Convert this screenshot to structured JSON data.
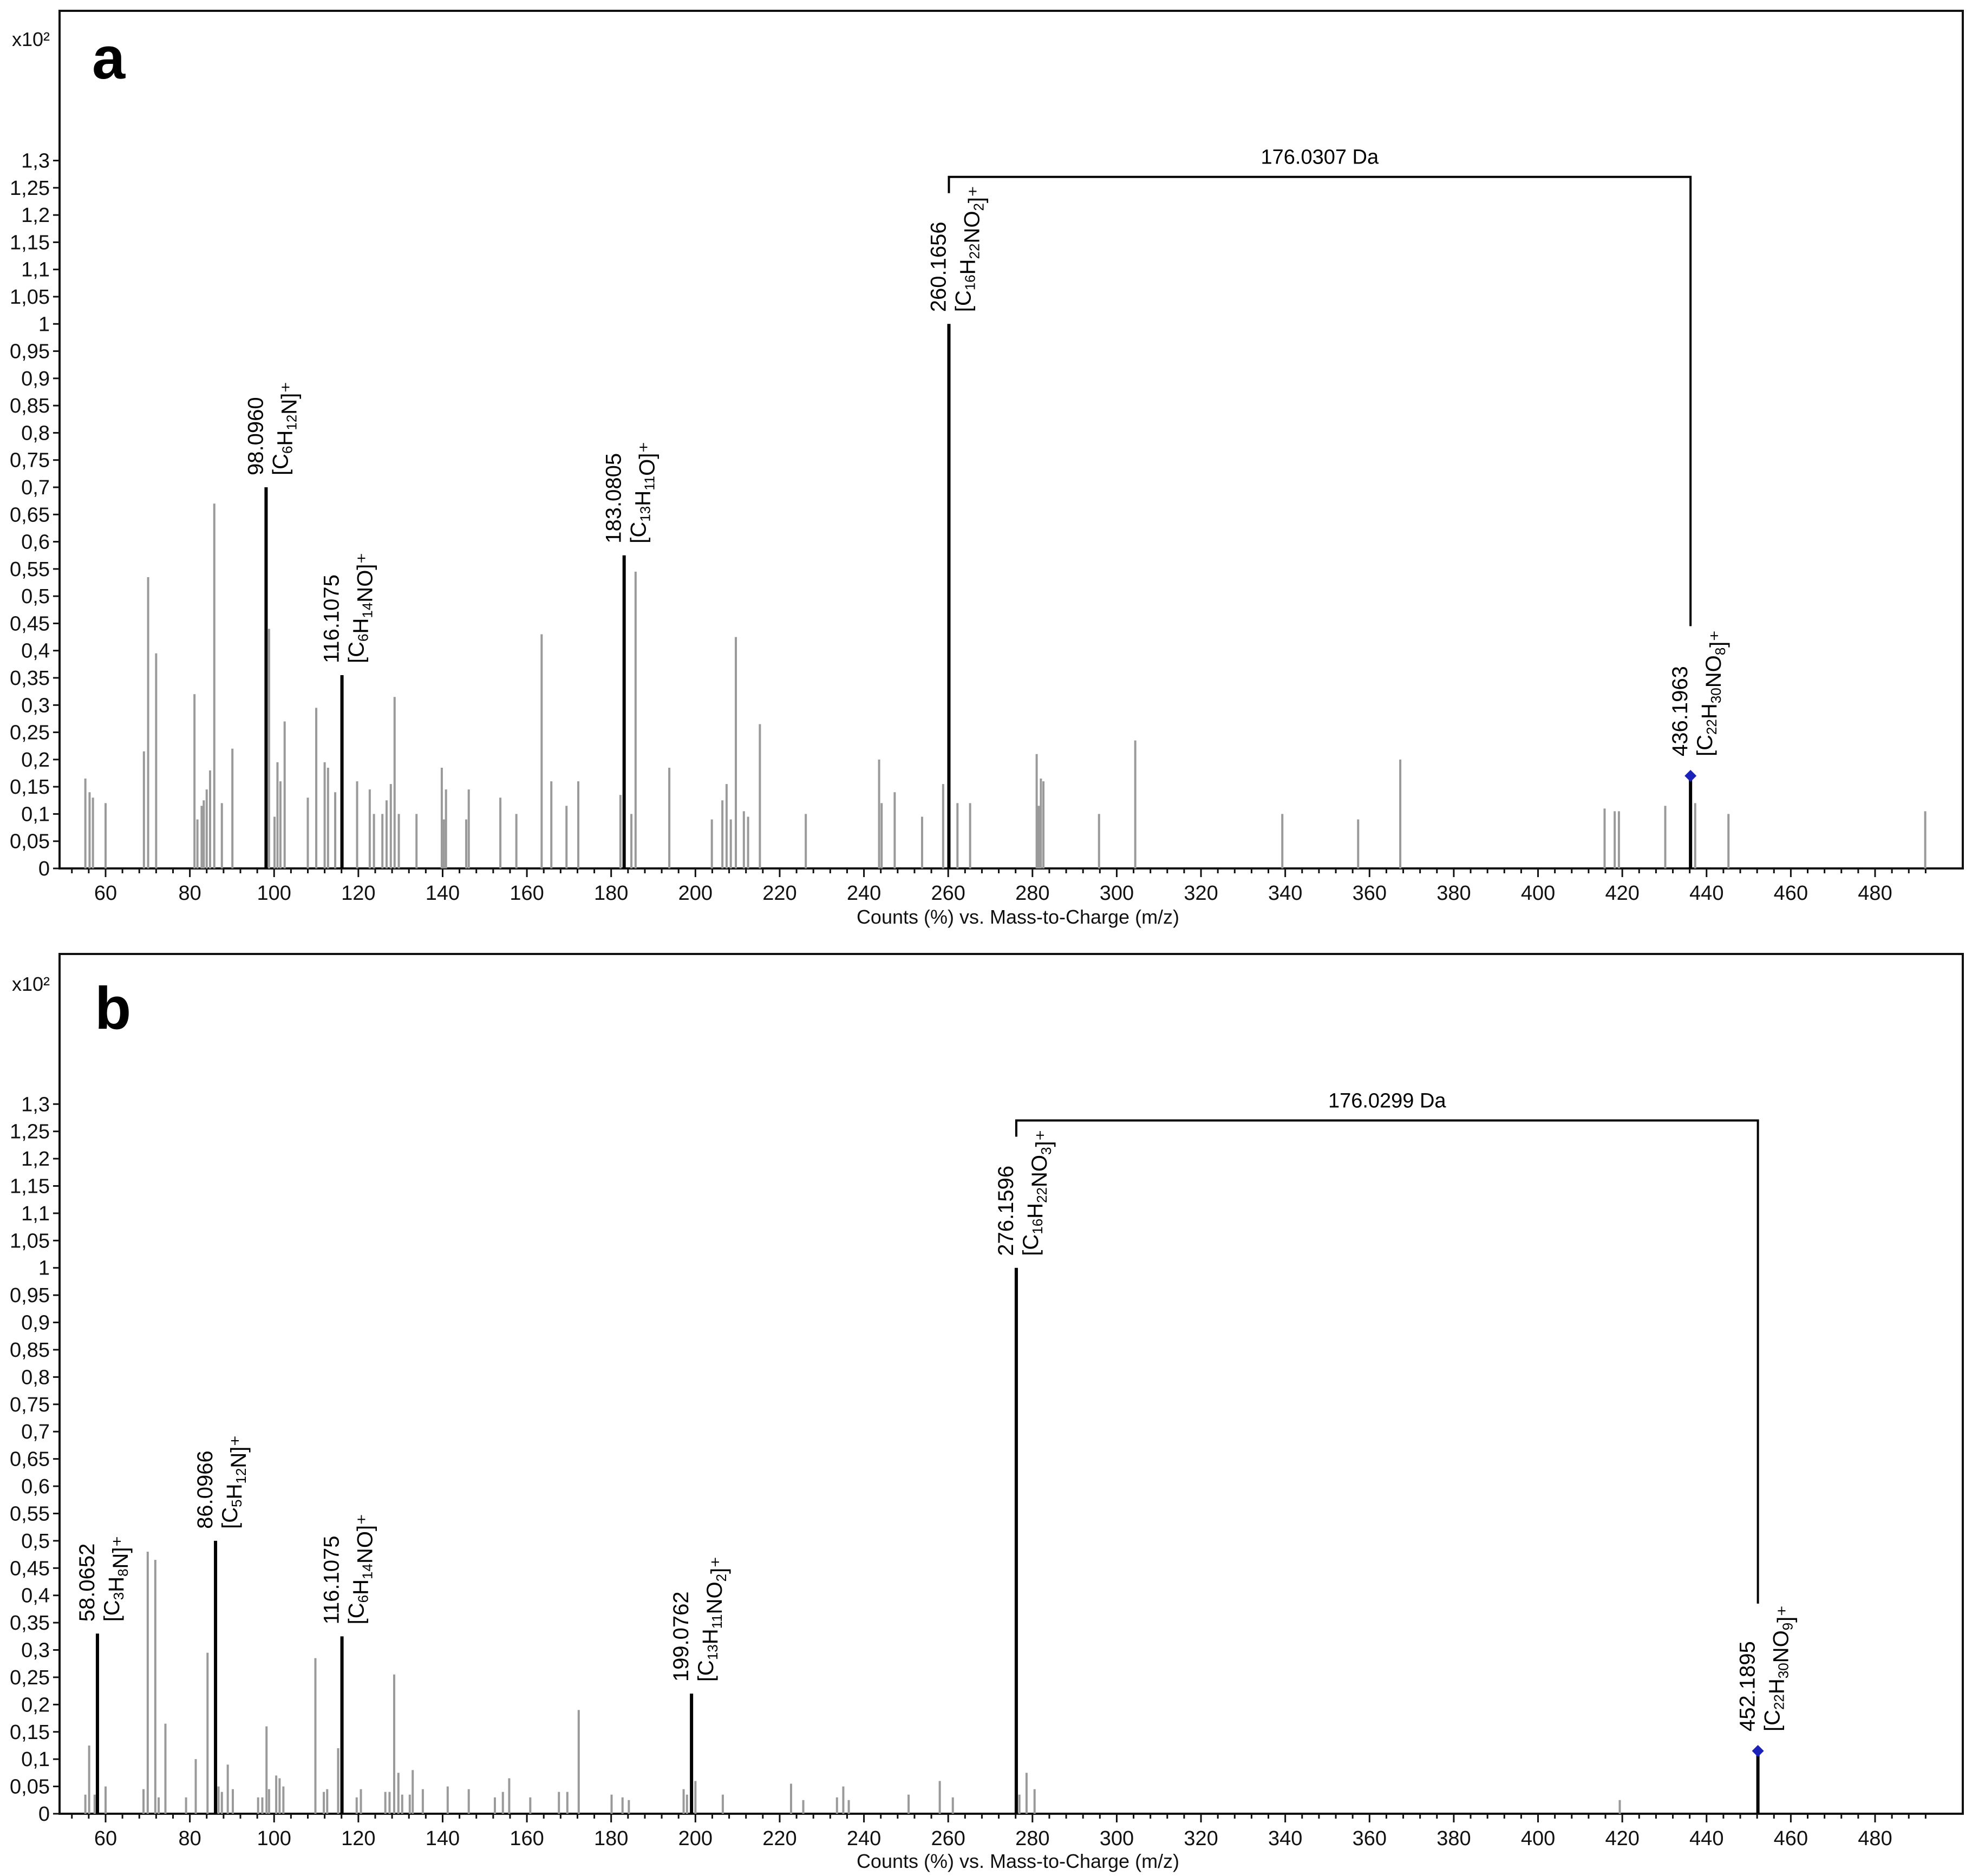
{
  "chart_data": [
    {
      "type": "bar",
      "panel_label": "a",
      "y_scale_label": "x10²",
      "xlabel": "Counts (%) vs. Mass-to-Charge (m/z)",
      "ylabel": "",
      "xlim": [
        50,
        495
      ],
      "ylim": [
        0,
        1.35
      ],
      "x_ticks": [
        60,
        80,
        100,
        120,
        140,
        160,
        180,
        200,
        220,
        240,
        260,
        280,
        300,
        320,
        340,
        360,
        380,
        400,
        420,
        440,
        460,
        480
      ],
      "y_ticks": [
        "0",
        "0,05",
        "0,1",
        "0,15",
        "0,2",
        "0,25",
        "0,3",
        "0,35",
        "0,4",
        "0,45",
        "0,5",
        "0,55",
        "0,6",
        "0,65",
        "0,7",
        "0,75",
        "0,8",
        "0,85",
        "0,9",
        "0,95",
        "1",
        "1,05",
        "1,1",
        "1,15",
        "1,2",
        "1,25",
        "1,3"
      ],
      "peaks": [
        {
          "x": 55.2,
          "y": 0.165
        },
        {
          "x": 56.2,
          "y": 0.14
        },
        {
          "x": 57.0,
          "y": 0.13
        },
        {
          "x": 60.0,
          "y": 0.12
        },
        {
          "x": 69.1,
          "y": 0.215
        },
        {
          "x": 70.1,
          "y": 0.535
        },
        {
          "x": 72.0,
          "y": 0.395
        },
        {
          "x": 81.1,
          "y": 0.32
        },
        {
          "x": 81.8,
          "y": 0.09
        },
        {
          "x": 82.8,
          "y": 0.115
        },
        {
          "x": 83.3,
          "y": 0.125
        },
        {
          "x": 84.0,
          "y": 0.145
        },
        {
          "x": 84.8,
          "y": 0.18
        },
        {
          "x": 85.8,
          "y": 0.67
        },
        {
          "x": 87.6,
          "y": 0.12
        },
        {
          "x": 90.1,
          "y": 0.22
        },
        {
          "x": 98.8,
          "y": 0.44
        },
        {
          "x": 100.1,
          "y": 0.095
        },
        {
          "x": 100.8,
          "y": 0.195
        },
        {
          "x": 101.5,
          "y": 0.16
        },
        {
          "x": 102.5,
          "y": 0.27
        },
        {
          "x": 108.0,
          "y": 0.13
        },
        {
          "x": 110.0,
          "y": 0.295
        },
        {
          "x": 112.0,
          "y": 0.195
        },
        {
          "x": 112.8,
          "y": 0.185
        },
        {
          "x": 114.5,
          "y": 0.14
        },
        {
          "x": 119.7,
          "y": 0.16
        },
        {
          "x": 122.7,
          "y": 0.145
        },
        {
          "x": 123.7,
          "y": 0.1
        },
        {
          "x": 125.7,
          "y": 0.1
        },
        {
          "x": 126.7,
          "y": 0.125
        },
        {
          "x": 127.7,
          "y": 0.155
        },
        {
          "x": 128.6,
          "y": 0.315
        },
        {
          "x": 129.6,
          "y": 0.1
        },
        {
          "x": 133.8,
          "y": 0.1
        },
        {
          "x": 139.8,
          "y": 0.185
        },
        {
          "x": 140.3,
          "y": 0.09
        },
        {
          "x": 140.8,
          "y": 0.145
        },
        {
          "x": 145.6,
          "y": 0.09
        },
        {
          "x": 146.2,
          "y": 0.145
        },
        {
          "x": 153.7,
          "y": 0.13
        },
        {
          "x": 157.5,
          "y": 0.1
        },
        {
          "x": 163.5,
          "y": 0.43
        },
        {
          "x": 165.8,
          "y": 0.16
        },
        {
          "x": 169.4,
          "y": 0.115
        },
        {
          "x": 172.2,
          "y": 0.16
        },
        {
          "x": 182.2,
          "y": 0.135
        },
        {
          "x": 184.8,
          "y": 0.1
        },
        {
          "x": 185.8,
          "y": 0.545
        },
        {
          "x": 193.8,
          "y": 0.185
        },
        {
          "x": 203.9,
          "y": 0.09
        },
        {
          "x": 206.4,
          "y": 0.125
        },
        {
          "x": 207.4,
          "y": 0.155
        },
        {
          "x": 208.4,
          "y": 0.09
        },
        {
          "x": 209.6,
          "y": 0.425
        },
        {
          "x": 211.5,
          "y": 0.105
        },
        {
          "x": 212.5,
          "y": 0.095
        },
        {
          "x": 215.3,
          "y": 0.265
        },
        {
          "x": 226.2,
          "y": 0.1
        },
        {
          "x": 243.6,
          "y": 0.2
        },
        {
          "x": 244.2,
          "y": 0.12
        },
        {
          "x": 247.3,
          "y": 0.14
        },
        {
          "x": 253.8,
          "y": 0.095
        },
        {
          "x": 258.8,
          "y": 0.155
        },
        {
          "x": 262.2,
          "y": 0.12
        },
        {
          "x": 265.2,
          "y": 0.12
        },
        {
          "x": 281.0,
          "y": 0.21
        },
        {
          "x": 281.5,
          "y": 0.115
        },
        {
          "x": 282.0,
          "y": 0.165
        },
        {
          "x": 282.6,
          "y": 0.16
        },
        {
          "x": 295.8,
          "y": 0.1
        },
        {
          "x": 304.4,
          "y": 0.235
        },
        {
          "x": 339.3,
          "y": 0.1
        },
        {
          "x": 357.3,
          "y": 0.09
        },
        {
          "x": 367.3,
          "y": 0.2
        },
        {
          "x": 415.8,
          "y": 0.11
        },
        {
          "x": 418.2,
          "y": 0.105
        },
        {
          "x": 419.2,
          "y": 0.105
        },
        {
          "x": 430.2,
          "y": 0.115
        },
        {
          "x": 437.3,
          "y": 0.12
        },
        {
          "x": 445.2,
          "y": 0.1
        },
        {
          "x": 491.9,
          "y": 0.105
        }
      ],
      "major_peaks": [
        {
          "x": 98.096,
          "y": 0.7,
          "mz": "98.0960",
          "formula": [
            [
              "[C",
              false
            ],
            [
              "6",
              true
            ],
            [
              "H",
              false
            ],
            [
              "12",
              true
            ],
            [
              "N]⁺",
              false
            ]
          ]
        },
        {
          "x": 116.1075,
          "y": 0.355,
          "mz": "116.1075",
          "formula": [
            [
              "[C",
              false
            ],
            [
              "6",
              true
            ],
            [
              "H",
              false
            ],
            [
              "14",
              true
            ],
            [
              "NO]⁺",
              false
            ]
          ]
        },
        {
          "x": 183.0805,
          "y": 0.575,
          "mz": "183.0805",
          "formula": [
            [
              "[C",
              false
            ],
            [
              "13",
              true
            ],
            [
              "H",
              false
            ],
            [
              "11",
              true
            ],
            [
              "O]⁺",
              false
            ]
          ]
        },
        {
          "x": 260.1656,
          "y": 1.0,
          "mz": "260.1656",
          "formula": [
            [
              "[C",
              false
            ],
            [
              "16",
              true
            ],
            [
              "H",
              false
            ],
            [
              "22",
              true
            ],
            [
              "NO",
              false
            ],
            [
              "2",
              true
            ],
            [
              "]⁺",
              false
            ]
          ]
        },
        {
          "x": 436.1963,
          "y": 0.17,
          "mz": "436.1963",
          "formula": [
            [
              "[C",
              false
            ],
            [
              "22",
              true
            ],
            [
              "H",
              false
            ],
            [
              "30",
              true
            ],
            [
              "NO",
              false
            ],
            [
              "8",
              true
            ],
            [
              "]⁺",
              false
            ]
          ],
          "precursor": true
        }
      ],
      "neutral_loss": {
        "from": 260.1656,
        "to": 436.1963,
        "label": "176.0307 Da",
        "y": 1.27,
        "end_y": 0.445
      }
    },
    {
      "type": "bar",
      "panel_label": "b",
      "y_scale_label": "x10²",
      "xlabel": "Counts (%) vs. Mass-to-Charge (m/z)",
      "ylabel": "",
      "xlim": [
        50,
        495
      ],
      "ylim": [
        0,
        1.35
      ],
      "x_ticks": [
        60,
        80,
        100,
        120,
        140,
        160,
        180,
        200,
        220,
        240,
        260,
        280,
        300,
        320,
        340,
        360,
        380,
        400,
        420,
        440,
        460,
        480
      ],
      "y_ticks": [
        "0",
        "0,05",
        "0,1",
        "0,15",
        "0,2",
        "0,25",
        "0,3",
        "0,35",
        "0,4",
        "0,45",
        "0,5",
        "0,55",
        "0,6",
        "0,65",
        "0,7",
        "0,75",
        "0,8",
        "0,85",
        "0,9",
        "0,95",
        "1",
        "1,05",
        "1,1",
        "1,15",
        "1,2",
        "1,25",
        "1,3"
      ],
      "peaks": [
        {
          "x": 55.2,
          "y": 0.035
        },
        {
          "x": 56.1,
          "y": 0.125
        },
        {
          "x": 57.4,
          "y": 0.035
        },
        {
          "x": 60.0,
          "y": 0.05
        },
        {
          "x": 69.0,
          "y": 0.045
        },
        {
          "x": 70.0,
          "y": 0.48
        },
        {
          "x": 71.8,
          "y": 0.465
        },
        {
          "x": 72.6,
          "y": 0.03
        },
        {
          "x": 74.2,
          "y": 0.165
        },
        {
          "x": 79.1,
          "y": 0.03
        },
        {
          "x": 81.4,
          "y": 0.1
        },
        {
          "x": 84.2,
          "y": 0.295
        },
        {
          "x": 86.8,
          "y": 0.05
        },
        {
          "x": 87.6,
          "y": 0.04
        },
        {
          "x": 89.0,
          "y": 0.09
        },
        {
          "x": 90.2,
          "y": 0.045
        },
        {
          "x": 96.2,
          "y": 0.03
        },
        {
          "x": 97.2,
          "y": 0.03
        },
        {
          "x": 98.2,
          "y": 0.16
        },
        {
          "x": 98.8,
          "y": 0.045
        },
        {
          "x": 100.5,
          "y": 0.07
        },
        {
          "x": 101.3,
          "y": 0.065
        },
        {
          "x": 102.2,
          "y": 0.05
        },
        {
          "x": 109.8,
          "y": 0.285
        },
        {
          "x": 111.8,
          "y": 0.04
        },
        {
          "x": 112.6,
          "y": 0.045
        },
        {
          "x": 115.2,
          "y": 0.12
        },
        {
          "x": 119.6,
          "y": 0.03
        },
        {
          "x": 120.6,
          "y": 0.045
        },
        {
          "x": 126.4,
          "y": 0.04
        },
        {
          "x": 127.4,
          "y": 0.04
        },
        {
          "x": 128.5,
          "y": 0.255
        },
        {
          "x": 129.5,
          "y": 0.075
        },
        {
          "x": 130.4,
          "y": 0.035
        },
        {
          "x": 132.2,
          "y": 0.035
        },
        {
          "x": 132.9,
          "y": 0.08
        },
        {
          "x": 135.3,
          "y": 0.045
        },
        {
          "x": 141.2,
          "y": 0.05
        },
        {
          "x": 146.2,
          "y": 0.045
        },
        {
          "x": 152.4,
          "y": 0.03
        },
        {
          "x": 154.3,
          "y": 0.04
        },
        {
          "x": 155.8,
          "y": 0.065
        },
        {
          "x": 160.8,
          "y": 0.03
        },
        {
          "x": 167.6,
          "y": 0.04
        },
        {
          "x": 169.6,
          "y": 0.04
        },
        {
          "x": 172.3,
          "y": 0.19
        },
        {
          "x": 180.1,
          "y": 0.035
        },
        {
          "x": 182.7,
          "y": 0.03
        },
        {
          "x": 184.2,
          "y": 0.025
        },
        {
          "x": 197.2,
          "y": 0.045
        },
        {
          "x": 198.0,
          "y": 0.035
        },
        {
          "x": 200.0,
          "y": 0.06
        },
        {
          "x": 206.5,
          "y": 0.035
        },
        {
          "x": 222.7,
          "y": 0.055
        },
        {
          "x": 225.6,
          "y": 0.025
        },
        {
          "x": 233.6,
          "y": 0.03
        },
        {
          "x": 235.1,
          "y": 0.05
        },
        {
          "x": 236.4,
          "y": 0.025
        },
        {
          "x": 250.6,
          "y": 0.035
        },
        {
          "x": 258.0,
          "y": 0.06
        },
        {
          "x": 261.1,
          "y": 0.03
        },
        {
          "x": 276.9,
          "y": 0.035
        },
        {
          "x": 278.6,
          "y": 0.075
        },
        {
          "x": 280.5,
          "y": 0.045
        },
        {
          "x": 419.4,
          "y": 0.025
        }
      ],
      "major_peaks": [
        {
          "x": 58.0652,
          "y": 0.33,
          "mz": "58.0652",
          "formula": [
            [
              "[C",
              false
            ],
            [
              "3",
              true
            ],
            [
              "H",
              false
            ],
            [
              "8",
              true
            ],
            [
              "N]⁺",
              false
            ]
          ]
        },
        {
          "x": 86.0966,
          "y": 0.5,
          "mz": "86.0966",
          "formula": [
            [
              "[C",
              false
            ],
            [
              "5",
              true
            ],
            [
              "H",
              false
            ],
            [
              "12",
              true
            ],
            [
              "N]⁺",
              false
            ]
          ]
        },
        {
          "x": 116.1075,
          "y": 0.325,
          "mz": "116.1075",
          "formula": [
            [
              "[C",
              false
            ],
            [
              "6",
              true
            ],
            [
              "H",
              false
            ],
            [
              "14",
              true
            ],
            [
              "NO]⁺",
              false
            ]
          ]
        },
        {
          "x": 199.0762,
          "y": 0.22,
          "mz": "199.0762",
          "formula": [
            [
              "[C",
              false
            ],
            [
              "13",
              true
            ],
            [
              "H",
              false
            ],
            [
              "11",
              true
            ],
            [
              "NO",
              false
            ],
            [
              "2",
              true
            ],
            [
              "]⁺",
              false
            ]
          ]
        },
        {
          "x": 276.1596,
          "y": 1.0,
          "mz": "276.1596",
          "formula": [
            [
              "[C",
              false
            ],
            [
              "16",
              true
            ],
            [
              "H",
              false
            ],
            [
              "22",
              true
            ],
            [
              "NO",
              false
            ],
            [
              "3",
              true
            ],
            [
              "]⁺",
              false
            ]
          ]
        },
        {
          "x": 452.1895,
          "y": 0.115,
          "mz": "452.1895",
          "formula": [
            [
              "[C",
              false
            ],
            [
              "22",
              true
            ],
            [
              "H",
              false
            ],
            [
              "30",
              true
            ],
            [
              "NO",
              false
            ],
            [
              "9",
              true
            ],
            [
              "]⁺",
              false
            ]
          ],
          "precursor": true
        }
      ],
      "neutral_loss": {
        "from": 276.1596,
        "to": 452.1895,
        "label": "176.0299 Da",
        "y": 1.27,
        "end_y": 0.385
      }
    }
  ],
  "colors": {
    "minor_peak": "#9a9a9a",
    "major_peak": "#000000",
    "precursor_marker": "#1a22b8",
    "frame": "#111111"
  }
}
